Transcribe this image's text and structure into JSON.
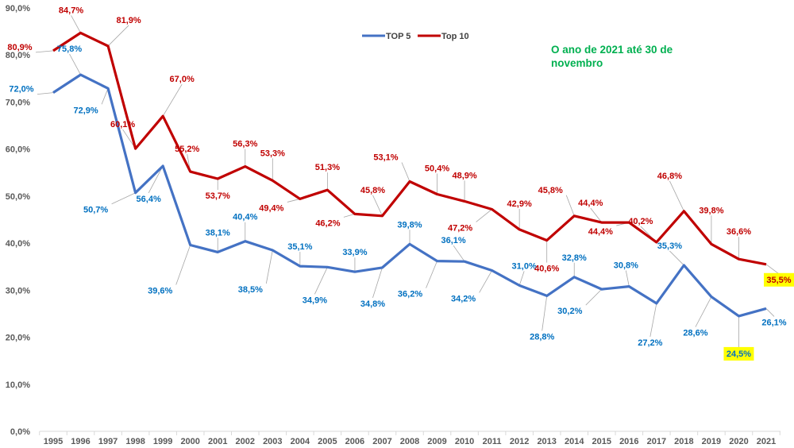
{
  "chart_data": {
    "type": "line",
    "title": "",
    "xlabel": "",
    "ylabel": "",
    "ylim": [
      0,
      90
    ],
    "y_ticks": [
      "0,0%",
      "10,0%",
      "20,0%",
      "30,0%",
      "40,0%",
      "50,0%",
      "60,0%",
      "70,0%",
      "80,0%",
      "90,0%"
    ],
    "y_tick_values": [
      0,
      10,
      20,
      30,
      40,
      50,
      60,
      70,
      80,
      90
    ],
    "grid": false,
    "legend_position": "top-center",
    "annotation": "O ano de 2021 até 30 de novembro",
    "x": [
      "1995",
      "1996",
      "1997",
      "1998",
      "1999",
      "2000",
      "2001",
      "2002",
      "2003",
      "2004",
      "2005",
      "2006",
      "2007",
      "2008",
      "2009",
      "2010",
      "2011",
      "2012",
      "2013",
      "2014",
      "2015",
      "2016",
      "2017",
      "2018",
      "2019",
      "2020",
      "2021"
    ],
    "series": [
      {
        "name": "TOP 5",
        "color": "#4472c4",
        "label_color": "#0070c0",
        "values": [
          72.0,
          75.8,
          72.9,
          50.7,
          56.4,
          39.6,
          38.1,
          40.4,
          38.5,
          35.1,
          34.9,
          33.9,
          34.8,
          39.8,
          36.2,
          36.1,
          34.2,
          31.0,
          28.8,
          32.8,
          30.2,
          30.8,
          27.2,
          35.3,
          28.6,
          24.5,
          26.1
        ],
        "labels": [
          "72,0%",
          "75,8%",
          "72,9%",
          "50,7%",
          "56,4%",
          "39,6%",
          "38,1%",
          "40,4%",
          "38,5%",
          "35,1%",
          "34,9%",
          "33,9%",
          "34,8%",
          "39,8%",
          "36,2%",
          "36,1%",
          "34,2%",
          "31,0%",
          "28,8%",
          "32,8%",
          "30,2%",
          "30,8%",
          "27,2%",
          "35,3%",
          "28,6%",
          "24,5%",
          "26,1%"
        ],
        "highlighted": [
          "2020"
        ]
      },
      {
        "name": "Top 10",
        "color": "#c00000",
        "label_color": "#c00000",
        "values": [
          80.9,
          84.7,
          81.9,
          60.1,
          67.0,
          55.2,
          53.7,
          56.3,
          53.3,
          49.4,
          51.3,
          46.2,
          45.8,
          53.1,
          50.4,
          48.9,
          47.2,
          42.9,
          40.6,
          45.8,
          44.4,
          44.4,
          40.2,
          46.8,
          39.8,
          36.6,
          35.5
        ],
        "labels": [
          "80,9%",
          "84,7%",
          "81,9%",
          "60,1%",
          "67,0%",
          "55,2%",
          "53,7%",
          "56,3%",
          "53,3%",
          "49,4%",
          "51,3%",
          "46,2%",
          "45,8%",
          "53,1%",
          "50,4%",
          "48,9%",
          "47,2%",
          "42,9%",
          "40,6%",
          "45,8%",
          "44,4%",
          "44,4%",
          "40,2%",
          "46,8%",
          "39,8%",
          "36,6%",
          "35,5%"
        ],
        "highlighted": [
          "2021"
        ]
      }
    ],
    "highlight_color": "#ffff00"
  }
}
